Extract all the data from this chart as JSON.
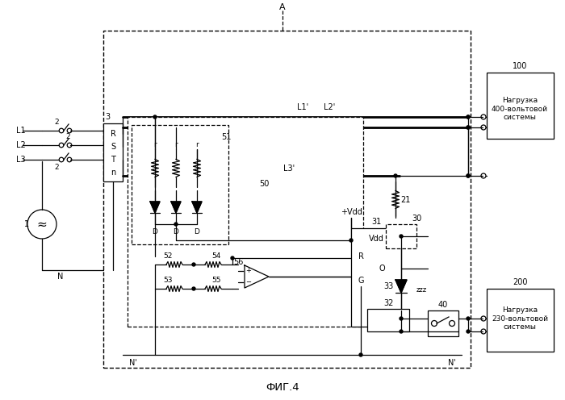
{
  "background": "#ffffff",
  "fig_width": 7.0,
  "fig_height": 4.96,
  "text_100": "Нагрузка\n400-вольтовой\nсистемы",
  "text_200": "Нагрузка\n230-вольтовой\nсистемы",
  "label_fig": "ФИГ.4",
  "lw": 0.9,
  "lw_thick": 2.0
}
